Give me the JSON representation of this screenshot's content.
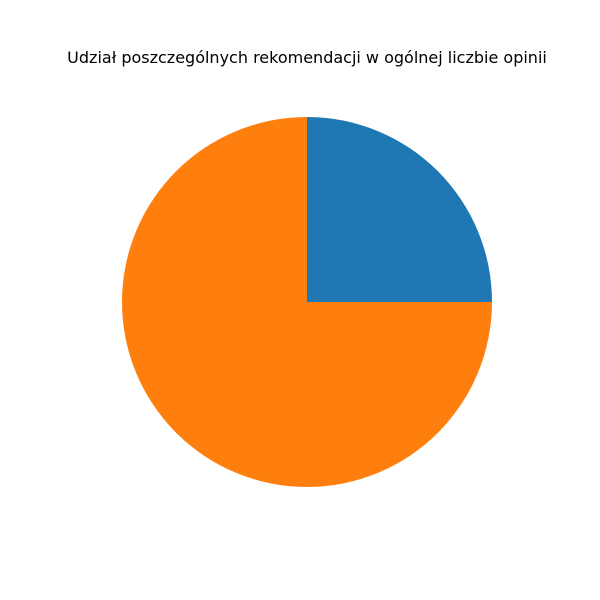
{
  "chart_data": {
    "type": "pie",
    "title": "Udział poszczególnych rekomendacji w ogólnej liczbie opinii",
    "values": [
      25,
      75
    ],
    "colors": [
      "#1f77b4",
      "#ff7f0e"
    ],
    "start_angle_deg": 0,
    "direction": "counterclockwise",
    "legend": "none"
  }
}
